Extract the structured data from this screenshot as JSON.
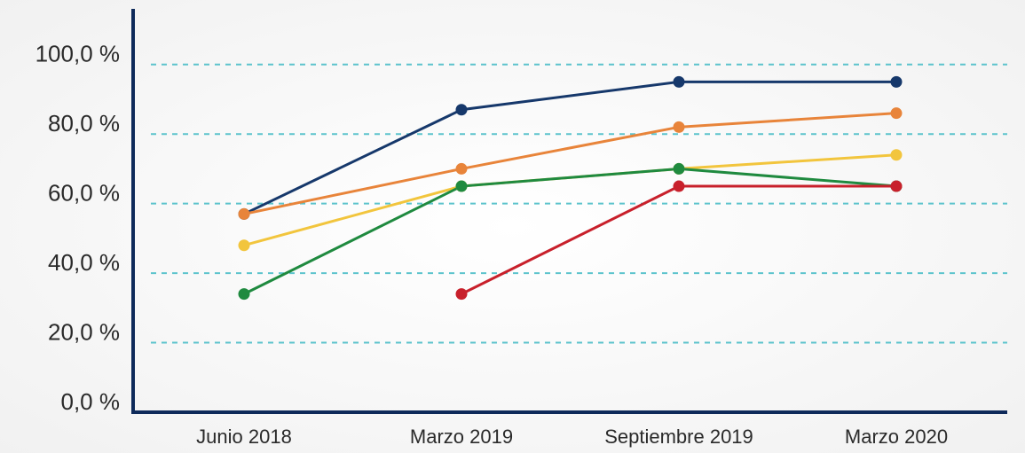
{
  "chart_data": {
    "type": "line",
    "categories": [
      "Junio 2018",
      "Marzo 2019",
      "Septiembre 2019",
      "Marzo 2020"
    ],
    "series": [
      {
        "color": "#16386b",
        "values": [
          57,
          87,
          95,
          95
        ]
      },
      {
        "color": "#e8843a",
        "values": [
          57,
          70,
          82,
          86
        ]
      },
      {
        "color": "#f2c53d",
        "values": [
          48,
          65,
          70,
          74
        ]
      },
      {
        "color": "#1f8a3f",
        "values": [
          34,
          65,
          70,
          65
        ]
      },
      {
        "color": "#c8202b",
        "values": [
          null,
          34,
          65,
          65
        ]
      }
    ],
    "ylim": [
      0,
      116
    ],
    "yticks": [
      {
        "value": 0,
        "label": "0,0 %"
      },
      {
        "value": 20,
        "label": "20,0 %"
      },
      {
        "value": 40,
        "label": "40,0 %"
      },
      {
        "value": 60,
        "label": "60,0 %"
      },
      {
        "value": 80,
        "label": "80,0 %"
      },
      {
        "value": 100,
        "label": "100,0 %"
      }
    ],
    "grid": true
  }
}
